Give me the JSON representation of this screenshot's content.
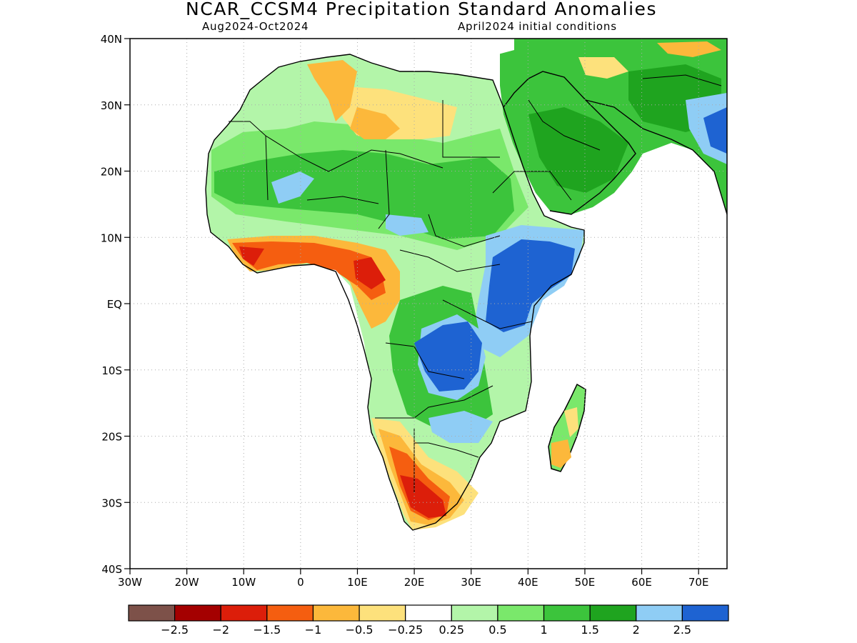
{
  "header": {
    "title": "NCAR_CCSM4 Precipitation Standard Anomalies",
    "period": "Aug2024-Oct2024",
    "init": "April2024 initial conditions"
  },
  "map": {
    "lat_labels": [
      "40N",
      "30N",
      "20N",
      "10N",
      "EQ",
      "10S",
      "20S",
      "30S",
      "40S"
    ],
    "lon_labels": [
      "30W",
      "20W",
      "10W",
      "0",
      "10E",
      "20E",
      "30E",
      "40E",
      "50E",
      "60E",
      "70E"
    ],
    "grid": "dotted"
  },
  "legend": {
    "colors": [
      "#7d5149",
      "#a40000",
      "#dc1e0a",
      "#f55e10",
      "#fcb83b",
      "#fde17c",
      "#ffffff",
      "#b3f5a9",
      "#7ae86b",
      "#3cc43c",
      "#1fa41f",
      "#8fcdf5",
      "#1e63d2"
    ],
    "labels": [
      "-2.5",
      "-2",
      "-1.5",
      "-1",
      "-0.5",
      "-0.25",
      "0.25",
      "0.5",
      "1",
      "1.5",
      "2",
      "2.5"
    ]
  }
}
